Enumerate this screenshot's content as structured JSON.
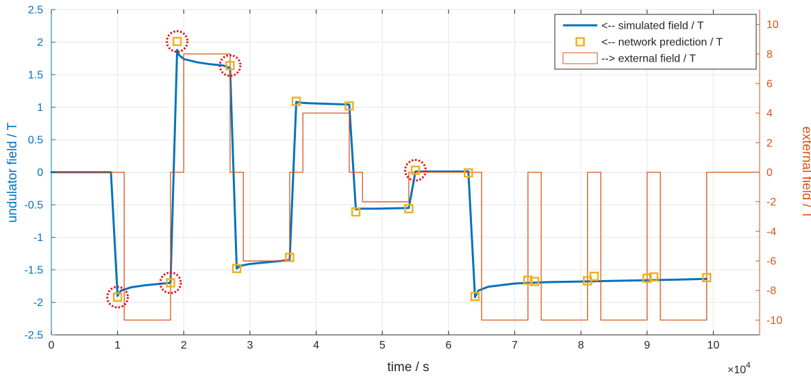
{
  "chart_data": {
    "type": "line",
    "xlabel": "time / s",
    "x_exponent_label": "×10",
    "x_exponent_power": "4",
    "ylabel_left": "undulator field / T",
    "ylabel_right": "external field / T",
    "x_scale": 10000,
    "xlim": [
      0,
      107000
    ],
    "ylim_left": [
      -2.5,
      2.5
    ],
    "ylim_right": [
      -11,
      11
    ],
    "x_ticks": [
      0,
      10000,
      20000,
      30000,
      40000,
      50000,
      60000,
      70000,
      80000,
      90000,
      100000
    ],
    "x_tick_labels": [
      "0",
      "1",
      "2",
      "3",
      "4",
      "5",
      "6",
      "7",
      "8",
      "9",
      "10"
    ],
    "y_left_ticks": [
      -2.5,
      -2,
      -1.5,
      -1,
      -0.5,
      0,
      0.5,
      1,
      1.5,
      2,
      2.5
    ],
    "y_left_tick_labels": [
      "-2.5",
      "-2",
      "-1.5",
      "-1",
      "-0.5",
      "0",
      "0.5",
      "1",
      "1.5",
      "2",
      "2.5"
    ],
    "y_right_ticks": [
      -10,
      -8,
      -6,
      -4,
      -2,
      0,
      2,
      4,
      6,
      8,
      10
    ],
    "y_right_tick_labels": [
      "-10",
      "-8",
      "-6",
      "-4",
      "-2",
      "0",
      "2",
      "4",
      "6",
      "8",
      "10"
    ],
    "grid": true,
    "legend_position": "top-right",
    "colors": {
      "simulated": "#0072BD",
      "prediction": "#EDB120",
      "external": "#D95319",
      "circle": "#E8101A",
      "left_axis": "#0072BD",
      "right_axis": "#D95319",
      "grid": "#E6E6E6",
      "axis": "#262626"
    },
    "series": [
      {
        "name": "<-- simulated field / T",
        "axis": "left",
        "style": "line",
        "x": [
          0,
          9000,
          10000,
          10500,
          12000,
          14000,
          16000,
          18000,
          19000,
          19300,
          20000,
          22000,
          24000,
          26000,
          27000,
          28000,
          28500,
          30000,
          33000,
          36000,
          37000,
          37500,
          39000,
          42000,
          45000,
          46000,
          46500,
          49000,
          54000,
          55000,
          58000,
          63000,
          64000,
          64500,
          66000,
          70000,
          75000,
          80000,
          85000,
          90000,
          95000,
          99000
        ],
        "y": [
          0,
          0,
          -1.9,
          -1.82,
          -1.77,
          -1.74,
          -1.72,
          -1.7,
          1.88,
          1.8,
          1.74,
          1.69,
          1.66,
          1.64,
          1.6,
          -1.48,
          -1.44,
          -1.41,
          -1.38,
          -1.35,
          1.08,
          1.07,
          1.06,
          1.05,
          1.04,
          -0.57,
          -0.56,
          -0.56,
          -0.55,
          0.01,
          0.01,
          0.01,
          -1.92,
          -1.82,
          -1.76,
          -1.71,
          -1.69,
          -1.68,
          -1.67,
          -1.66,
          -1.65,
          -1.64
        ]
      },
      {
        "name": "<-- network prediction / T",
        "axis": "left",
        "style": "markers",
        "x": [
          10000,
          18000,
          19000,
          27000,
          28000,
          36000,
          37000,
          45000,
          46000,
          54000,
          55000,
          63000,
          64000,
          72000,
          73000,
          81000,
          82000,
          90000,
          91000,
          99000
        ],
        "y": [
          -1.92,
          -1.7,
          2.01,
          1.64,
          -1.48,
          -1.31,
          1.09,
          1.02,
          -0.61,
          -0.56,
          0.03,
          -0.01,
          -1.91,
          -1.66,
          -1.68,
          -1.67,
          -1.6,
          -1.63,
          -1.61,
          -1.62
        ]
      },
      {
        "name": "--> external field / T",
        "axis": "right",
        "style": "step",
        "x": [
          0,
          11000,
          11000,
          18000,
          18000,
          20000,
          20000,
          27000,
          27000,
          29000,
          29000,
          36000,
          36000,
          38000,
          38000,
          45000,
          45000,
          47000,
          47000,
          54000,
          54000,
          65000,
          65000,
          72000,
          72000,
          74000,
          74000,
          81000,
          81000,
          83000,
          83000,
          90000,
          90000,
          92000,
          92000,
          99000,
          99000,
          107000
        ],
        "y": [
          0,
          0,
          -10,
          -10,
          0,
          0,
          8,
          8,
          0,
          0,
          -6,
          -6,
          0,
          0,
          4,
          4,
          0,
          0,
          -2,
          -2,
          0,
          0,
          -10,
          -10,
          0,
          0,
          -10,
          -10,
          0,
          0,
          -10,
          -10,
          0,
          0,
          -10,
          -10,
          0,
          0
        ]
      }
    ],
    "circled_points": [
      {
        "x": 10000,
        "y": -1.92
      },
      {
        "x": 18000,
        "y": -1.7
      },
      {
        "x": 19000,
        "y": 2.01
      },
      {
        "x": 27000,
        "y": 1.64
      },
      {
        "x": 55000,
        "y": 0.03
      }
    ]
  }
}
